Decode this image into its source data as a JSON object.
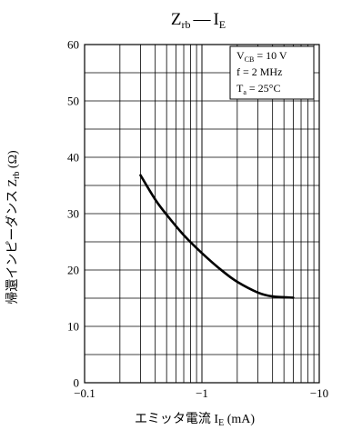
{
  "chart_data": {
    "type": "line",
    "title": {
      "main": "Z",
      "sub": "rb",
      "dash": "—",
      "main2": "I",
      "sub2": "E"
    },
    "xlabel": {
      "text": "エミッタ電流 I",
      "sub": "E",
      "unit": " (mA)"
    },
    "ylabel": {
      "text": "帰還インピーダンス Z",
      "sub": "rb",
      "unit": " (Ω)"
    },
    "x_scale": "log",
    "xlim": [
      -0.1,
      -10
    ],
    "ylim": [
      0,
      60
    ],
    "x_tick_labels": [
      "−0.1",
      "−1",
      "−10"
    ],
    "y_tick_labels": [
      "0",
      "10",
      "20",
      "30",
      "40",
      "50",
      "60"
    ],
    "grid": true,
    "conditions": [
      {
        "pre": "V",
        "sub": "CB",
        "post": " = 10 V"
      },
      {
        "pre": "f = 2 MHz",
        "sub": "",
        "post": ""
      },
      {
        "pre": "T",
        "sub": "a",
        "post": " = 25°C"
      }
    ],
    "legend_position": "top-right",
    "series": [
      {
        "x": [
          -0.3,
          -0.4,
          -0.5,
          -0.7,
          -1.0,
          -1.5,
          -2.0,
          -3.0,
          -4.0,
          -6.0
        ],
        "y": [
          36.8,
          32.5,
          29.8,
          26.2,
          23.0,
          19.8,
          17.9,
          16.0,
          15.3,
          15.1
        ]
      }
    ]
  }
}
